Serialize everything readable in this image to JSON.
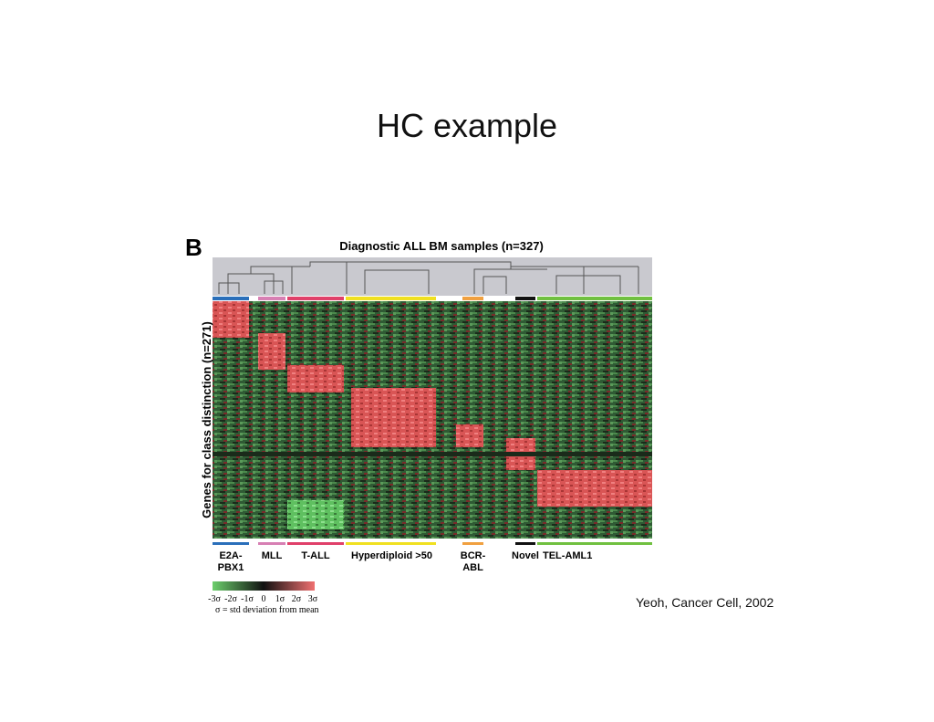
{
  "title": "HC example",
  "figure": {
    "panel": "B",
    "title": "Diagnostic ALL BM samples (n=327)",
    "y_label": "Genes for class distinction (n=271)",
    "classes": [
      {
        "lines": [
          "E2A-",
          "PBX1"
        ],
        "color": "#2a6fba"
      },
      {
        "lines": [
          "MLL"
        ],
        "color": "#d77fb3"
      },
      {
        "lines": [
          "T-ALL"
        ],
        "color": "#e0406a"
      },
      {
        "lines": [
          "Hyperdiploid >50"
        ],
        "color": "#f0e020"
      },
      {
        "lines": [
          "BCR-",
          "ABL"
        ],
        "color": "#f0a040"
      },
      {
        "lines": [
          "Novel"
        ],
        "color": "#111111"
      },
      {
        "lines": [
          "TEL-AML1"
        ],
        "color": "#70c040"
      }
    ],
    "scale": {
      "ticks": [
        "-3σ",
        "-2σ",
        "-1σ",
        "0",
        "1σ",
        "2σ",
        "3σ"
      ],
      "caption": "σ = std deviation from mean"
    }
  },
  "citation": "Yeoh, Cancer Cell, 2002"
}
